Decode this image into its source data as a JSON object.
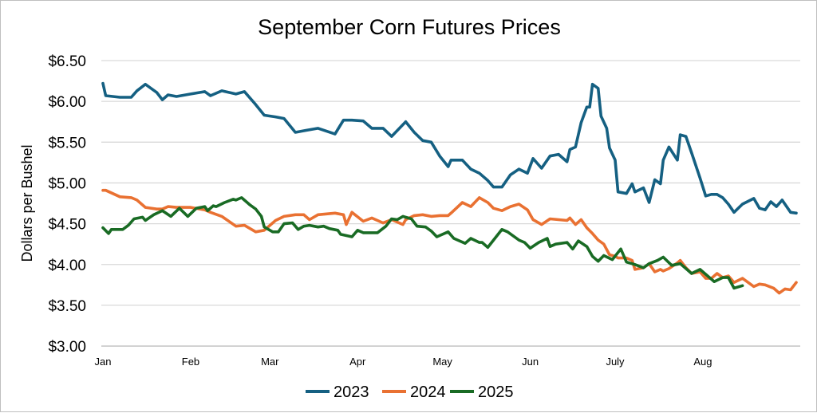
{
  "chart_data": {
    "type": "line",
    "title": "September Corn Futures Prices",
    "xlabel": "",
    "ylabel": "Dollars per Bushel",
    "x_tick_labels": [
      "Jan",
      "Feb",
      "Mar",
      "Apr",
      "May",
      "Jun",
      "July",
      "Aug"
    ],
    "y_tick_labels": [
      "$6.50",
      "$6.00",
      "$5.50",
      "$5.00",
      "$4.50",
      "$4.00",
      "$3.50",
      "$3.00"
    ],
    "ylim": [
      3.0,
      6.5
    ],
    "xlim": [
      "01-01",
      "09-03"
    ],
    "grid": true,
    "legend": "bottom",
    "series": [
      {
        "name": "2023",
        "color": "#156082",
        "points": [
          [
            "01-01",
            6.22
          ],
          [
            "01-02",
            6.07
          ],
          [
            "01-07",
            6.05
          ],
          [
            "01-11",
            6.05
          ],
          [
            "01-13",
            6.13
          ],
          [
            "01-16",
            6.21
          ],
          [
            "01-20",
            6.11
          ],
          [
            "01-22",
            6.02
          ],
          [
            "01-24",
            6.08
          ],
          [
            "01-27",
            6.06
          ],
          [
            "02-01",
            6.09
          ],
          [
            "02-06",
            6.12
          ],
          [
            "02-08",
            6.07
          ],
          [
            "02-12",
            6.13
          ],
          [
            "02-17",
            6.09
          ],
          [
            "02-20",
            6.12
          ],
          [
            "02-24",
            5.96
          ],
          [
            "02-27",
            5.83
          ],
          [
            "03-03",
            5.81
          ],
          [
            "03-06",
            5.79
          ],
          [
            "03-10",
            5.62
          ],
          [
            "03-13",
            5.64
          ],
          [
            "03-18",
            5.67
          ],
          [
            "03-24",
            5.6
          ],
          [
            "03-27",
            5.77
          ],
          [
            "03-30",
            5.77
          ],
          [
            "04-03",
            5.76
          ],
          [
            "04-06",
            5.67
          ],
          [
            "04-10",
            5.67
          ],
          [
            "04-13",
            5.57
          ],
          [
            "04-18",
            5.75
          ],
          [
            "04-21",
            5.62
          ],
          [
            "04-24",
            5.52
          ],
          [
            "04-27",
            5.5
          ],
          [
            "04-30",
            5.33
          ],
          [
            "05-03",
            5.2
          ],
          [
            "05-04",
            5.28
          ],
          [
            "05-08",
            5.28
          ],
          [
            "05-11",
            5.17
          ],
          [
            "05-14",
            5.12
          ],
          [
            "05-17",
            5.03
          ],
          [
            "05-19",
            4.95
          ],
          [
            "05-22",
            4.95
          ],
          [
            "05-25",
            5.1
          ],
          [
            "05-28",
            5.17
          ],
          [
            "05-31",
            5.12
          ],
          [
            "06-02",
            5.3
          ],
          [
            "06-05",
            5.18
          ],
          [
            "06-08",
            5.33
          ],
          [
            "06-11",
            5.35
          ],
          [
            "06-14",
            5.26
          ],
          [
            "06-15",
            5.41
          ],
          [
            "06-17",
            5.44
          ],
          [
            "06-19",
            5.74
          ],
          [
            "06-21",
            5.93
          ],
          [
            "06-22",
            5.93
          ],
          [
            "06-23",
            6.21
          ],
          [
            "06-25",
            6.16
          ],
          [
            "06-26",
            5.82
          ],
          [
            "06-28",
            5.67
          ],
          [
            "06-29",
            5.43
          ],
          [
            "07-01",
            5.28
          ],
          [
            "07-02",
            4.89
          ],
          [
            "07-05",
            4.87
          ],
          [
            "07-07",
            4.99
          ],
          [
            "07-08",
            4.89
          ],
          [
            "07-11",
            4.94
          ],
          [
            "07-13",
            4.76
          ],
          [
            "07-15",
            5.04
          ],
          [
            "07-17",
            4.99
          ],
          [
            "07-18",
            5.28
          ],
          [
            "07-20",
            5.44
          ],
          [
            "07-23",
            5.28
          ],
          [
            "07-24",
            5.59
          ],
          [
            "07-26",
            5.57
          ],
          [
            "07-28",
            5.37
          ],
          [
            "07-31",
            5.06
          ],
          [
            "08-02",
            4.84
          ],
          [
            "08-04",
            4.86
          ],
          [
            "08-06",
            4.86
          ],
          [
            "08-08",
            4.82
          ],
          [
            "08-10",
            4.74
          ],
          [
            "08-12",
            4.64
          ],
          [
            "08-15",
            4.74
          ],
          [
            "08-19",
            4.81
          ],
          [
            "08-21",
            4.69
          ],
          [
            "08-23",
            4.67
          ],
          [
            "08-25",
            4.77
          ],
          [
            "08-27",
            4.71
          ],
          [
            "08-29",
            4.79
          ],
          [
            "09-01",
            4.64
          ],
          [
            "09-03",
            4.63
          ]
        ]
      },
      {
        "name": "2024",
        "color": "#E97132",
        "points": [
          [
            "01-01",
            4.91
          ],
          [
            "01-02",
            4.91
          ],
          [
            "01-07",
            4.83
          ],
          [
            "01-11",
            4.82
          ],
          [
            "01-13",
            4.79
          ],
          [
            "01-16",
            4.7
          ],
          [
            "01-20",
            4.68
          ],
          [
            "01-22",
            4.68
          ],
          [
            "01-24",
            4.71
          ],
          [
            "01-27",
            4.7
          ],
          [
            "02-01",
            4.7
          ],
          [
            "02-06",
            4.67
          ],
          [
            "02-08",
            4.64
          ],
          [
            "02-12",
            4.59
          ],
          [
            "02-17",
            4.47
          ],
          [
            "02-20",
            4.48
          ],
          [
            "02-24",
            4.4
          ],
          [
            "02-27",
            4.42
          ],
          [
            "03-03",
            4.54
          ],
          [
            "03-06",
            4.59
          ],
          [
            "03-10",
            4.61
          ],
          [
            "03-13",
            4.61
          ],
          [
            "03-15",
            4.55
          ],
          [
            "03-18",
            4.61
          ],
          [
            "03-24",
            4.63
          ],
          [
            "03-27",
            4.61
          ],
          [
            "03-28",
            4.49
          ],
          [
            "03-30",
            4.64
          ],
          [
            "04-03",
            4.53
          ],
          [
            "04-06",
            4.57
          ],
          [
            "04-10",
            4.51
          ],
          [
            "04-13",
            4.55
          ],
          [
            "04-17",
            4.49
          ],
          [
            "04-18",
            4.55
          ],
          [
            "04-21",
            4.6
          ],
          [
            "04-24",
            4.61
          ],
          [
            "04-27",
            4.59
          ],
          [
            "04-30",
            4.6
          ],
          [
            "05-03",
            4.6
          ],
          [
            "05-04",
            4.63
          ],
          [
            "05-08",
            4.76
          ],
          [
            "05-11",
            4.71
          ],
          [
            "05-14",
            4.82
          ],
          [
            "05-17",
            4.76
          ],
          [
            "05-19",
            4.69
          ],
          [
            "05-22",
            4.66
          ],
          [
            "05-25",
            4.71
          ],
          [
            "05-28",
            4.74
          ],
          [
            "05-31",
            4.67
          ],
          [
            "06-02",
            4.55
          ],
          [
            "06-05",
            4.49
          ],
          [
            "06-08",
            4.56
          ],
          [
            "06-11",
            4.55
          ],
          [
            "06-14",
            4.54
          ],
          [
            "06-15",
            4.57
          ],
          [
            "06-17",
            4.49
          ],
          [
            "06-19",
            4.55
          ],
          [
            "06-21",
            4.45
          ],
          [
            "06-23",
            4.38
          ],
          [
            "06-25",
            4.3
          ],
          [
            "06-27",
            4.25
          ],
          [
            "06-29",
            4.12
          ],
          [
            "07-01",
            4.1
          ],
          [
            "07-02",
            4.08
          ],
          [
            "07-05",
            4.08
          ],
          [
            "07-07",
            4.05
          ],
          [
            "07-08",
            3.94
          ],
          [
            "07-11",
            3.96
          ],
          [
            "07-13",
            4.01
          ],
          [
            "07-15",
            3.91
          ],
          [
            "07-17",
            3.94
          ],
          [
            "07-18",
            3.92
          ],
          [
            "07-20",
            3.95
          ],
          [
            "07-23",
            4.02
          ],
          [
            "07-24",
            4.05
          ],
          [
            "07-26",
            3.96
          ],
          [
            "07-28",
            3.89
          ],
          [
            "07-31",
            3.91
          ],
          [
            "08-02",
            3.83
          ],
          [
            "08-04",
            3.83
          ],
          [
            "08-06",
            3.89
          ],
          [
            "08-08",
            3.84
          ],
          [
            "08-10",
            3.86
          ],
          [
            "08-12",
            3.78
          ],
          [
            "08-15",
            3.83
          ],
          [
            "08-19",
            3.73
          ],
          [
            "08-21",
            3.76
          ],
          [
            "08-23",
            3.75
          ],
          [
            "08-26",
            3.71
          ],
          [
            "08-28",
            3.65
          ],
          [
            "08-30",
            3.7
          ],
          [
            "09-01",
            3.69
          ],
          [
            "09-03",
            3.78
          ]
        ]
      },
      {
        "name": "2025",
        "color": "#196B24",
        "points": [
          [
            "01-01",
            4.45
          ],
          [
            "01-03",
            4.38
          ],
          [
            "01-04",
            4.43
          ],
          [
            "01-08",
            4.43
          ],
          [
            "01-10",
            4.48
          ],
          [
            "01-12",
            4.56
          ],
          [
            "01-15",
            4.58
          ],
          [
            "01-16",
            4.54
          ],
          [
            "01-19",
            4.61
          ],
          [
            "01-22",
            4.66
          ],
          [
            "01-25",
            4.59
          ],
          [
            "01-28",
            4.69
          ],
          [
            "01-31",
            4.59
          ],
          [
            "02-03",
            4.69
          ],
          [
            "02-06",
            4.71
          ],
          [
            "02-07",
            4.66
          ],
          [
            "02-09",
            4.72
          ],
          [
            "02-10",
            4.71
          ],
          [
            "02-13",
            4.76
          ],
          [
            "02-16",
            4.8
          ],
          [
            "02-17",
            4.79
          ],
          [
            "02-19",
            4.82
          ],
          [
            "02-22",
            4.73
          ],
          [
            "02-24",
            4.68
          ],
          [
            "02-26",
            4.59
          ],
          [
            "02-27",
            4.46
          ],
          [
            "03-02",
            4.4
          ],
          [
            "03-04",
            4.4
          ],
          [
            "03-06",
            4.5
          ],
          [
            "03-09",
            4.51
          ],
          [
            "03-11",
            4.43
          ],
          [
            "03-13",
            4.47
          ],
          [
            "03-15",
            4.48
          ],
          [
            "03-18",
            4.46
          ],
          [
            "03-20",
            4.47
          ],
          [
            "03-22",
            4.44
          ],
          [
            "03-25",
            4.42
          ],
          [
            "03-26",
            4.37
          ],
          [
            "03-30",
            4.34
          ],
          [
            "04-01",
            4.42
          ],
          [
            "04-03",
            4.39
          ],
          [
            "04-08",
            4.39
          ],
          [
            "04-11",
            4.47
          ],
          [
            "04-13",
            4.56
          ],
          [
            "04-15",
            4.55
          ],
          [
            "04-17",
            4.59
          ],
          [
            "04-20",
            4.56
          ],
          [
            "04-22",
            4.47
          ],
          [
            "04-25",
            4.46
          ],
          [
            "04-27",
            4.41
          ],
          [
            "04-29",
            4.34
          ],
          [
            "05-01",
            4.37
          ],
          [
            "05-03",
            4.4
          ],
          [
            "05-05",
            4.32
          ],
          [
            "05-07",
            4.29
          ],
          [
            "05-09",
            4.26
          ],
          [
            "05-11",
            4.32
          ],
          [
            "05-14",
            4.27
          ],
          [
            "05-15",
            4.27
          ],
          [
            "05-17",
            4.21
          ],
          [
            "05-22",
            4.43
          ],
          [
            "05-24",
            4.4
          ],
          [
            "05-28",
            4.3
          ],
          [
            "05-30",
            4.27
          ],
          [
            "06-01",
            4.2
          ],
          [
            "06-04",
            4.27
          ],
          [
            "06-07",
            4.32
          ],
          [
            "06-08",
            4.22
          ],
          [
            "06-10",
            4.25
          ],
          [
            "06-14",
            4.27
          ],
          [
            "06-16",
            4.19
          ],
          [
            "06-18",
            4.29
          ],
          [
            "06-21",
            4.22
          ],
          [
            "06-23",
            4.1
          ],
          [
            "06-25",
            4.04
          ],
          [
            "06-27",
            4.11
          ],
          [
            "06-30",
            4.06
          ],
          [
            "07-03",
            4.19
          ],
          [
            "07-05",
            4.03
          ],
          [
            "07-08",
            4.0
          ],
          [
            "07-11",
            3.96
          ],
          [
            "07-13",
            4.01
          ],
          [
            "07-16",
            4.05
          ],
          [
            "07-18",
            4.09
          ],
          [
            "07-21",
            3.99
          ],
          [
            "07-24",
            4.01
          ],
          [
            "07-28",
            3.89
          ],
          [
            "07-31",
            3.94
          ],
          [
            "08-05",
            3.79
          ],
          [
            "08-08",
            3.84
          ],
          [
            "08-10",
            3.84
          ],
          [
            "08-12",
            3.71
          ],
          [
            "08-15",
            3.74
          ]
        ]
      }
    ]
  }
}
